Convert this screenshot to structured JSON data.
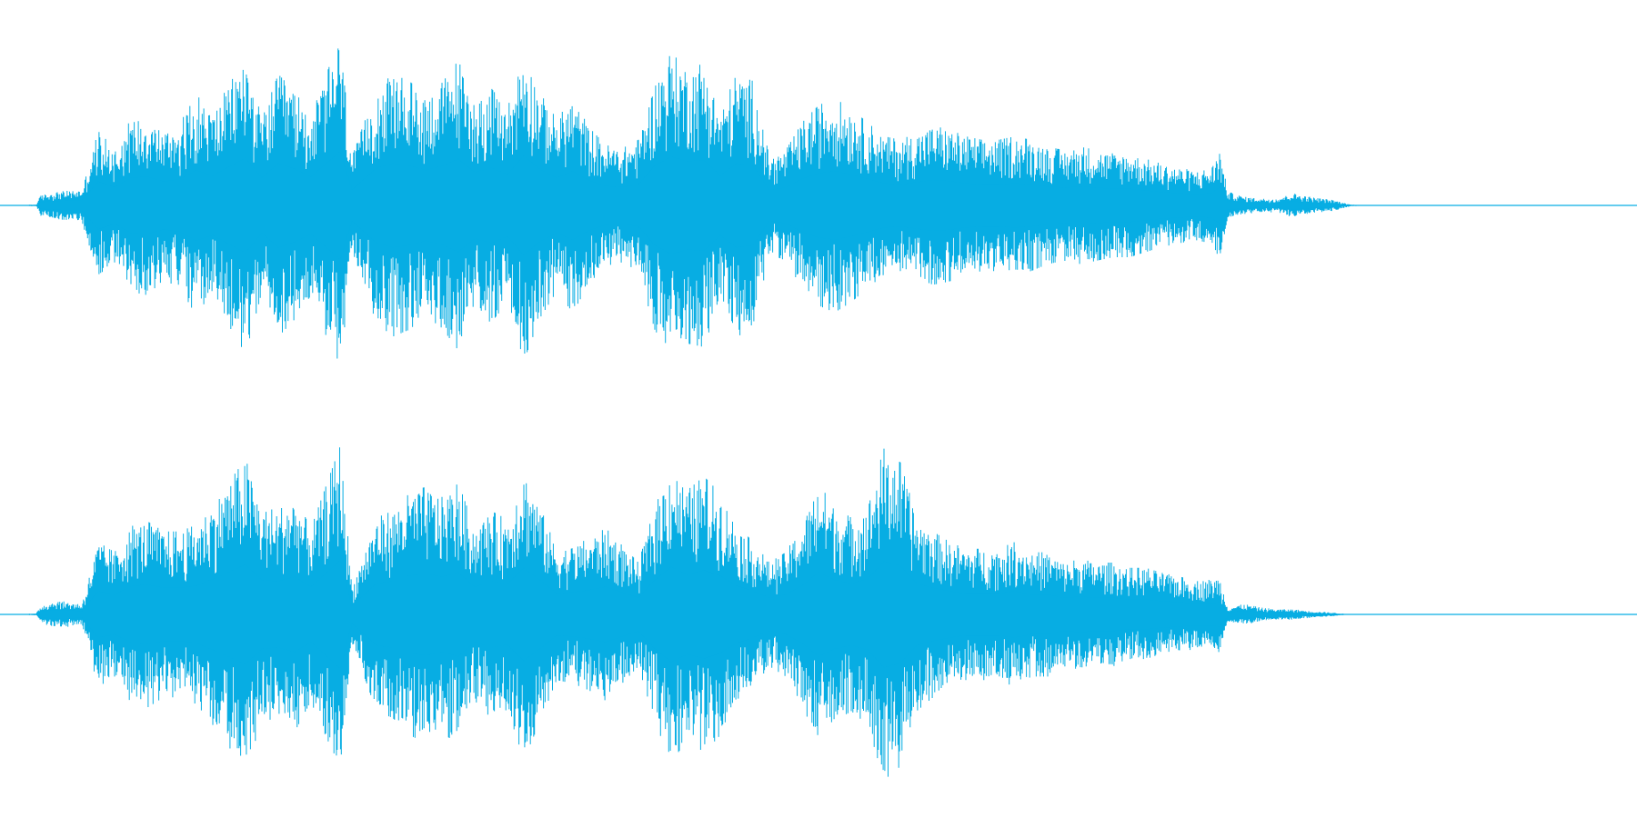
{
  "waveform": {
    "color": "#07ADE3",
    "background": "#FFFFFF",
    "channels": [
      {
        "name": "",
        "envelope": [
          [
            0.0,
            0.0
          ],
          [
            0.022,
            0.005
          ],
          [
            0.025,
            0.06
          ],
          [
            0.035,
            0.08
          ],
          [
            0.05,
            0.09
          ],
          [
            0.06,
            0.43
          ],
          [
            0.07,
            0.33
          ],
          [
            0.08,
            0.5
          ],
          [
            0.09,
            0.52
          ],
          [
            0.1,
            0.43
          ],
          [
            0.11,
            0.48
          ],
          [
            0.12,
            0.64
          ],
          [
            0.13,
            0.54
          ],
          [
            0.15,
            0.86
          ],
          [
            0.16,
            0.5
          ],
          [
            0.17,
            0.76
          ],
          [
            0.18,
            0.66
          ],
          [
            0.19,
            0.52
          ],
          [
            0.208,
            0.98
          ],
          [
            0.215,
            0.28
          ],
          [
            0.23,
            0.68
          ],
          [
            0.24,
            0.76
          ],
          [
            0.25,
            0.72
          ],
          [
            0.26,
            0.64
          ],
          [
            0.27,
            0.71
          ],
          [
            0.28,
            0.84
          ],
          [
            0.29,
            0.6
          ],
          [
            0.3,
            0.68
          ],
          [
            0.31,
            0.56
          ],
          [
            0.32,
            0.9
          ],
          [
            0.33,
            0.65
          ],
          [
            0.34,
            0.5
          ],
          [
            0.35,
            0.62
          ],
          [
            0.36,
            0.45
          ],
          [
            0.37,
            0.35
          ],
          [
            0.38,
            0.33
          ],
          [
            0.39,
            0.38
          ],
          [
            0.4,
            0.72
          ],
          [
            0.41,
            0.88
          ],
          [
            0.42,
            0.8
          ],
          [
            0.43,
            0.82
          ],
          [
            0.44,
            0.54
          ],
          [
            0.45,
            0.76
          ],
          [
            0.46,
            0.72
          ],
          [
            0.47,
            0.28
          ],
          [
            0.48,
            0.32
          ],
          [
            0.49,
            0.48
          ],
          [
            0.5,
            0.58
          ],
          [
            0.51,
            0.62
          ],
          [
            0.52,
            0.56
          ],
          [
            0.53,
            0.48
          ],
          [
            0.54,
            0.4
          ],
          [
            0.55,
            0.38
          ],
          [
            0.56,
            0.42
          ],
          [
            0.57,
            0.46
          ],
          [
            0.58,
            0.44
          ],
          [
            0.59,
            0.4
          ],
          [
            0.6,
            0.38
          ],
          [
            0.61,
            0.38
          ],
          [
            0.62,
            0.4
          ],
          [
            0.63,
            0.38
          ],
          [
            0.64,
            0.34
          ],
          [
            0.65,
            0.32
          ],
          [
            0.66,
            0.34
          ],
          [
            0.67,
            0.32
          ],
          [
            0.68,
            0.3
          ],
          [
            0.69,
            0.3
          ],
          [
            0.7,
            0.27
          ],
          [
            0.71,
            0.24
          ],
          [
            0.72,
            0.22
          ],
          [
            0.73,
            0.2
          ],
          [
            0.74,
            0.22
          ],
          [
            0.745,
            0.33
          ],
          [
            0.75,
            0.08
          ],
          [
            0.76,
            0.05
          ],
          [
            0.77,
            0.04
          ],
          [
            0.78,
            0.04
          ],
          [
            0.79,
            0.07
          ],
          [
            0.8,
            0.05
          ],
          [
            0.815,
            0.03
          ],
          [
            0.825,
            0.005
          ],
          [
            0.835,
            0.003
          ],
          [
            1.0,
            0.003
          ]
        ]
      },
      {
        "name": "",
        "envelope": [
          [
            0.0,
            0.0
          ],
          [
            0.022,
            0.005
          ],
          [
            0.025,
            0.05
          ],
          [
            0.035,
            0.08
          ],
          [
            0.05,
            0.06
          ],
          [
            0.06,
            0.42
          ],
          [
            0.07,
            0.36
          ],
          [
            0.08,
            0.51
          ],
          [
            0.09,
            0.54
          ],
          [
            0.1,
            0.48
          ],
          [
            0.11,
            0.48
          ],
          [
            0.12,
            0.52
          ],
          [
            0.13,
            0.64
          ],
          [
            0.15,
            0.9
          ],
          [
            0.16,
            0.62
          ],
          [
            0.17,
            0.6
          ],
          [
            0.18,
            0.68
          ],
          [
            0.19,
            0.5
          ],
          [
            0.208,
            0.98
          ],
          [
            0.215,
            0.16
          ],
          [
            0.23,
            0.56
          ],
          [
            0.24,
            0.6
          ],
          [
            0.25,
            0.7
          ],
          [
            0.26,
            0.74
          ],
          [
            0.27,
            0.68
          ],
          [
            0.28,
            0.76
          ],
          [
            0.29,
            0.5
          ],
          [
            0.3,
            0.6
          ],
          [
            0.31,
            0.55
          ],
          [
            0.32,
            0.84
          ],
          [
            0.33,
            0.62
          ],
          [
            0.34,
            0.38
          ],
          [
            0.35,
            0.4
          ],
          [
            0.36,
            0.44
          ],
          [
            0.37,
            0.5
          ],
          [
            0.38,
            0.4
          ],
          [
            0.39,
            0.3
          ],
          [
            0.4,
            0.62
          ],
          [
            0.41,
            0.86
          ],
          [
            0.42,
            0.72
          ],
          [
            0.43,
            0.8
          ],
          [
            0.44,
            0.7
          ],
          [
            0.45,
            0.52
          ],
          [
            0.46,
            0.42
          ],
          [
            0.47,
            0.3
          ],
          [
            0.48,
            0.36
          ],
          [
            0.49,
            0.52
          ],
          [
            0.5,
            0.76
          ],
          [
            0.51,
            0.62
          ],
          [
            0.52,
            0.56
          ],
          [
            0.53,
            0.64
          ],
          [
            0.54,
            0.96
          ],
          [
            0.55,
            0.88
          ],
          [
            0.56,
            0.56
          ],
          [
            0.57,
            0.48
          ],
          [
            0.58,
            0.42
          ],
          [
            0.59,
            0.38
          ],
          [
            0.6,
            0.38
          ],
          [
            0.61,
            0.38
          ],
          [
            0.62,
            0.42
          ],
          [
            0.63,
            0.36
          ],
          [
            0.64,
            0.36
          ],
          [
            0.65,
            0.3
          ],
          [
            0.66,
            0.32
          ],
          [
            0.67,
            0.3
          ],
          [
            0.68,
            0.3
          ],
          [
            0.69,
            0.27
          ],
          [
            0.7,
            0.27
          ],
          [
            0.71,
            0.24
          ],
          [
            0.72,
            0.22
          ],
          [
            0.73,
            0.2
          ],
          [
            0.74,
            0.2
          ],
          [
            0.745,
            0.22
          ],
          [
            0.75,
            0.04
          ],
          [
            0.76,
            0.06
          ],
          [
            0.77,
            0.04
          ],
          [
            0.78,
            0.03
          ],
          [
            0.79,
            0.03
          ],
          [
            0.8,
            0.02
          ],
          [
            0.815,
            0.01
          ],
          [
            0.822,
            0.003
          ],
          [
            0.835,
            0.003
          ],
          [
            1.0,
            0.003
          ]
        ]
      }
    ]
  }
}
